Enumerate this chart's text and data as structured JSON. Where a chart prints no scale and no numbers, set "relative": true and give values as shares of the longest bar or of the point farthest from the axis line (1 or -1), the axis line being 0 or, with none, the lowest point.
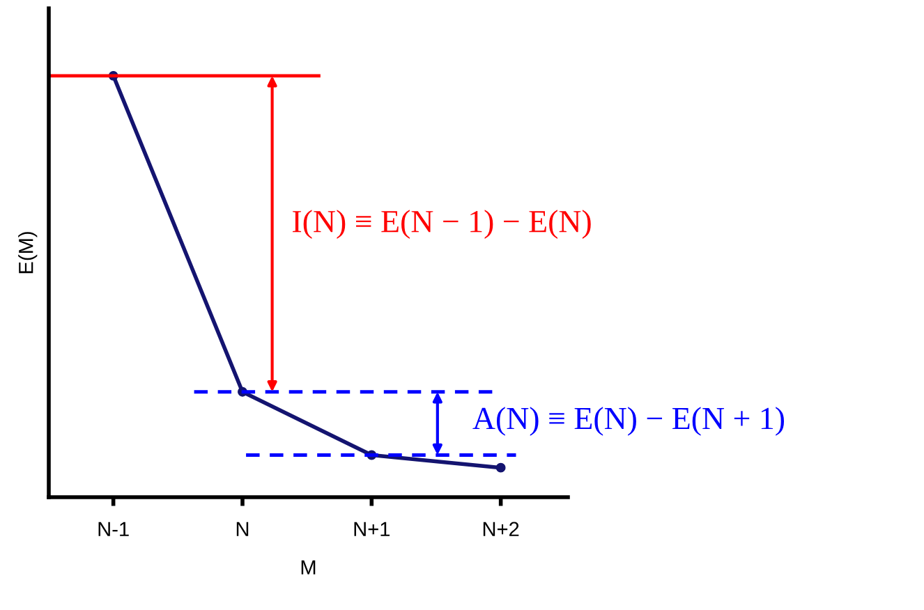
{
  "chart_data": {
    "type": "line",
    "xlabel": "M",
    "ylabel": "E(M)",
    "relative": true,
    "categories": [
      "N-1",
      "N",
      "N+1",
      "N+2"
    ],
    "series": [
      {
        "color": "#141470",
        "values": [
          1,
          0.25,
          0.1,
          0.07
        ]
      }
    ],
    "marker": "circle",
    "line_style": "solid",
    "grid": false,
    "legend": false,
    "tick_labels": "x",
    "ref_lines": [
      {
        "axis": "y",
        "value": 1,
        "color": "#ff0000",
        "line_style": "solid"
      },
      {
        "axis": "y",
        "value": 0.25,
        "color": "#0000ff",
        "line_style": "dashed"
      },
      {
        "axis": "y",
        "value": 0.1,
        "color": "#0000ff",
        "line_style": "dashed"
      }
    ],
    "annotations": [
      "I(N) ≡ E(N − 1) − E(N)",
      "A(N) ≡ E(N) − E(N + 1)"
    ]
  }
}
